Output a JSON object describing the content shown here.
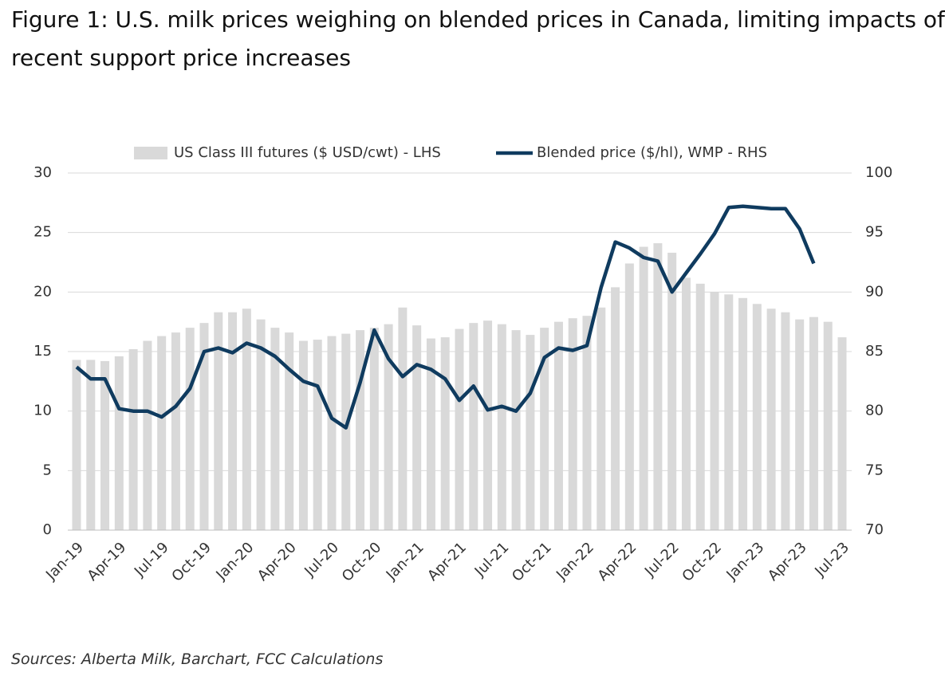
{
  "chart_data": {
    "type": "bar-line",
    "title_lines": [
      "Figure 1:  U.S. milk prices weighing on blended prices in Canada, limiting impacts of",
      "recent support price increases"
    ],
    "source": "Sources: Alberta Milk, Barchart, FCC Calculations",
    "categories": [
      "Jan-19",
      null,
      null,
      "Apr-19",
      null,
      null,
      "Jul-19",
      null,
      null,
      "Oct-19",
      null,
      null,
      "Jan-20",
      null,
      null,
      "Apr-20",
      null,
      null,
      "Jul-20",
      null,
      null,
      "Oct-20",
      null,
      null,
      "Jan-21",
      null,
      null,
      "Apr-21",
      null,
      null,
      "Jul-21",
      null,
      null,
      "Oct-21",
      null,
      null,
      "Jan-22",
      null,
      null,
      "Apr-22",
      null,
      null,
      "Jul-22",
      null,
      null,
      "Oct-22",
      null,
      null,
      "Jan-23",
      null,
      null,
      "Apr-23",
      null,
      null,
      "Jul-23"
    ],
    "series": [
      {
        "name": "US Class III futures ($ USD/cwt) - LHS",
        "type": "bar",
        "color": "#d9d9d9",
        "axis": "y",
        "values": [
          14.3,
          14.3,
          14.2,
          14.6,
          15.2,
          15.9,
          16.3,
          16.6,
          17.0,
          17.4,
          18.3,
          18.3,
          18.6,
          17.7,
          17.0,
          16.6,
          15.9,
          16.0,
          16.3,
          16.5,
          16.8,
          17.0,
          17.3,
          18.7,
          17.2,
          16.1,
          16.2,
          16.9,
          17.4,
          17.6,
          17.3,
          16.8,
          16.4,
          17.0,
          17.5,
          17.8,
          18.0,
          18.7,
          20.4,
          22.4,
          23.8,
          24.1,
          23.3,
          21.2,
          20.7,
          20.0,
          19.8,
          19.5,
          19.0,
          18.6,
          18.3,
          17.7,
          17.9,
          17.5,
          16.2
        ]
      },
      {
        "name": "Blended price ($/hl), WMP - RHS",
        "type": "line",
        "color": "#0f3b5f",
        "axis": "y2",
        "values": [
          83.7,
          82.7,
          82.7,
          80.2,
          80.0,
          80.0,
          79.5,
          80.4,
          81.9,
          85.0,
          85.3,
          84.9,
          85.7,
          85.3,
          84.6,
          83.5,
          82.5,
          82.1,
          79.4,
          78.6,
          82.4,
          86.8,
          84.4,
          82.9,
          83.9,
          83.5,
          82.7,
          80.9,
          82.1,
          80.1,
          80.4,
          80.0,
          81.5,
          84.5,
          85.3,
          85.1,
          85.5,
          90.4,
          94.2,
          93.7,
          92.9,
          92.6,
          90.0,
          91.6,
          93.2,
          94.9,
          97.1,
          97.2,
          97.1,
          97.0,
          97.0,
          95.3,
          92.4,
          null,
          null
        ]
      }
    ],
    "ylim": [
      0,
      30
    ],
    "yticks": [
      0,
      5,
      10,
      15,
      20,
      25,
      30
    ],
    "y2lim": [
      70,
      100
    ],
    "y2ticks": [
      70,
      75,
      80,
      85,
      90,
      95,
      100
    ],
    "grid": true,
    "legend": "top"
  }
}
